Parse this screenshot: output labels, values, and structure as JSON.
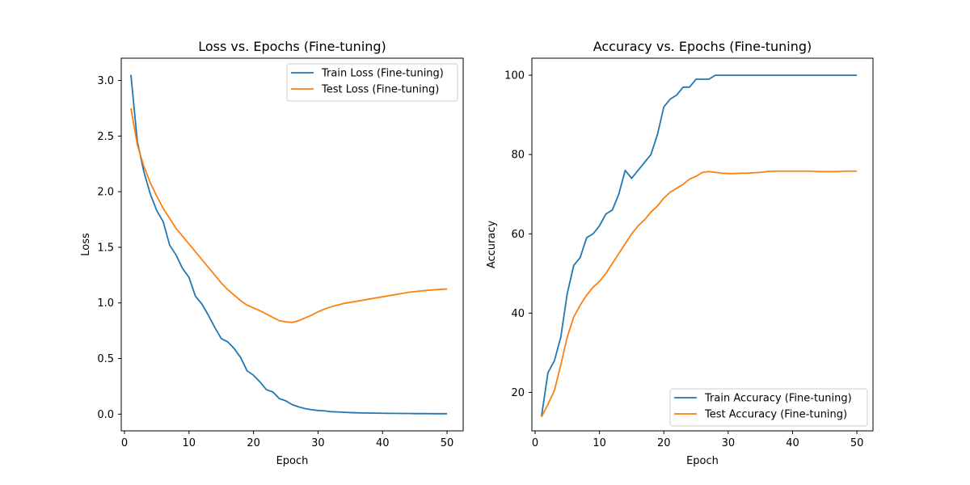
{
  "chart_data": [
    {
      "type": "line",
      "title": "Loss vs. Epochs (Fine-tuning)",
      "xlabel": "Epoch",
      "ylabel": "Loss",
      "xlim": [
        -0.5,
        52.5
      ],
      "ylim": [
        -0.15,
        3.2
      ],
      "xticks": [
        0,
        10,
        20,
        30,
        40,
        50
      ],
      "xtick_labels": [
        "0",
        "10",
        "20",
        "30",
        "40",
        "50"
      ],
      "yticks": [
        0.0,
        0.5,
        1.0,
        1.5,
        2.0,
        2.5,
        3.0
      ],
      "ytick_labels": [
        "0.0",
        "0.5",
        "1.0",
        "1.5",
        "2.0",
        "2.5",
        "3.0"
      ],
      "grid": false,
      "legend_position": "top-right",
      "x": [
        1,
        2,
        3,
        4,
        5,
        6,
        7,
        8,
        9,
        10,
        11,
        12,
        13,
        14,
        15,
        16,
        17,
        18,
        19,
        20,
        21,
        22,
        23,
        24,
        25,
        26,
        27,
        28,
        29,
        30,
        31,
        32,
        33,
        34,
        35,
        36,
        37,
        38,
        39,
        40,
        41,
        42,
        43,
        44,
        45,
        46,
        47,
        48,
        49,
        50
      ],
      "series": [
        {
          "name": "Train Loss (Fine-tuning)",
          "color": "#1f77b4",
          "values": [
            3.05,
            2.45,
            2.18,
            1.98,
            1.83,
            1.73,
            1.52,
            1.43,
            1.31,
            1.23,
            1.06,
            0.99,
            0.89,
            0.78,
            0.68,
            0.65,
            0.59,
            0.51,
            0.39,
            0.35,
            0.29,
            0.22,
            0.2,
            0.14,
            0.12,
            0.085,
            0.065,
            0.05,
            0.04,
            0.033,
            0.03,
            0.022,
            0.02,
            0.017,
            0.014,
            0.012,
            0.011,
            0.01,
            0.009,
            0.008,
            0.007,
            0.007,
            0.006,
            0.006,
            0.005,
            0.005,
            0.005,
            0.004,
            0.004,
            0.004
          ]
        },
        {
          "name": "Test Loss (Fine-tuning)",
          "color": "#ff7f0e",
          "values": [
            2.75,
            2.42,
            2.23,
            2.08,
            1.96,
            1.85,
            1.76,
            1.67,
            1.6,
            1.53,
            1.46,
            1.39,
            1.32,
            1.25,
            1.18,
            1.12,
            1.07,
            1.02,
            0.98,
            0.955,
            0.93,
            0.9,
            0.87,
            0.84,
            0.83,
            0.825,
            0.84,
            0.865,
            0.89,
            0.92,
            0.945,
            0.965,
            0.98,
            0.995,
            1.005,
            1.015,
            1.025,
            1.035,
            1.045,
            1.055,
            1.065,
            1.075,
            1.085,
            1.095,
            1.102,
            1.108,
            1.113,
            1.118,
            1.122,
            1.125
          ]
        }
      ]
    },
    {
      "type": "line",
      "title": "Accuracy vs. Epochs (Fine-tuning)",
      "xlabel": "Epoch",
      "ylabel": "Accuracy",
      "xlim": [
        -0.5,
        52.5
      ],
      "ylim": [
        10.3,
        104.3
      ],
      "xticks": [
        0,
        10,
        20,
        30,
        40,
        50
      ],
      "xtick_labels": [
        "0",
        "10",
        "20",
        "30",
        "40",
        "50"
      ],
      "yticks": [
        20,
        40,
        60,
        80,
        100
      ],
      "ytick_labels": [
        "20",
        "40",
        "60",
        "80",
        "100"
      ],
      "grid": false,
      "legend_position": "bottom-right",
      "x": [
        1,
        2,
        3,
        4,
        5,
        6,
        7,
        8,
        9,
        10,
        11,
        12,
        13,
        14,
        15,
        16,
        17,
        18,
        19,
        20,
        21,
        22,
        23,
        24,
        25,
        26,
        27,
        28,
        29,
        30,
        31,
        32,
        33,
        34,
        35,
        36,
        37,
        38,
        39,
        40,
        41,
        42,
        43,
        44,
        45,
        46,
        47,
        48,
        49,
        50
      ],
      "series": [
        {
          "name": "Train Accuracy (Fine-tuning)",
          "color": "#1f77b4",
          "values": [
            14,
            25,
            28,
            34,
            45,
            52,
            54,
            59,
            60,
            62,
            65,
            66,
            70,
            76,
            74,
            76,
            78,
            80,
            85,
            92,
            94,
            95,
            97,
            97,
            99,
            99,
            99,
            100,
            100,
            100,
            100,
            100,
            100,
            100,
            100,
            100,
            100,
            100,
            100,
            100,
            100,
            100,
            100,
            100,
            100,
            100,
            100,
            100,
            100,
            100
          ]
        },
        {
          "name": "Test Accuracy (Fine-tuning)",
          "color": "#ff7f0e",
          "values": [
            13.8,
            17,
            20.5,
            27,
            34,
            39,
            42,
            44.5,
            46.5,
            48,
            50,
            52.5,
            55,
            57.5,
            60,
            62,
            63.5,
            65.5,
            67,
            69,
            70.5,
            71.5,
            72.5,
            73.8,
            74.5,
            75.5,
            75.7,
            75.5,
            75.3,
            75.2,
            75.2,
            75.3,
            75.3,
            75.4,
            75.5,
            75.7,
            75.8,
            75.8,
            75.8,
            75.8,
            75.8,
            75.8,
            75.8,
            75.7,
            75.7,
            75.7,
            75.7,
            75.8,
            75.8,
            75.8
          ]
        }
      ]
    }
  ]
}
